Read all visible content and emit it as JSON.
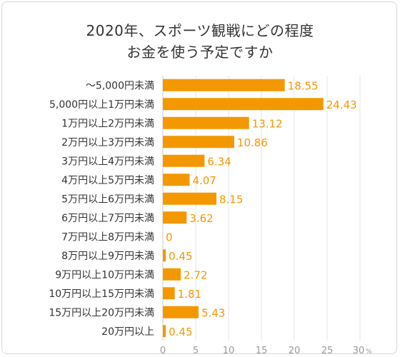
{
  "title_line1": "2020年、スポーツ観戦にどの程度",
  "title_line2": "お金を使う予定ですか",
  "chart_data": {
    "type": "bar",
    "orientation": "horizontal",
    "categories": [
      "～5,000円未満",
      "5,000円以上1万円未満",
      "1万円以上2万円未満",
      "2万円以上3万円未満",
      "3万円以上4万円未満",
      "4万円以上5万円未満",
      "5万円以上6万円未満",
      "6万円以上7万円未満",
      "7万円以上8万円未満",
      "8万円以上9万円未満",
      "9万円以上10万円未満",
      "10万円以上15万円未満",
      "15万円以上20万円未満",
      "20万円以上"
    ],
    "values": [
      18.55,
      24.43,
      13.12,
      10.86,
      6.34,
      4.07,
      8.15,
      3.62,
      0,
      0.45,
      2.72,
      1.81,
      5.43,
      0.45
    ],
    "value_labels": [
      "18.55",
      "24.43",
      "13.12",
      "10.86",
      "6.34",
      "4.07",
      "8.15",
      "3.62",
      "0",
      "0.45",
      "2.72",
      "1.81",
      "5.43",
      "0.45"
    ],
    "xlim": [
      0,
      30
    ],
    "xticks": [
      "0",
      "5",
      "10",
      "15",
      "20",
      "25",
      "30"
    ],
    "x_unit": "%",
    "grid": true,
    "bar_color": "#f39800",
    "label_color": "#f39800"
  }
}
